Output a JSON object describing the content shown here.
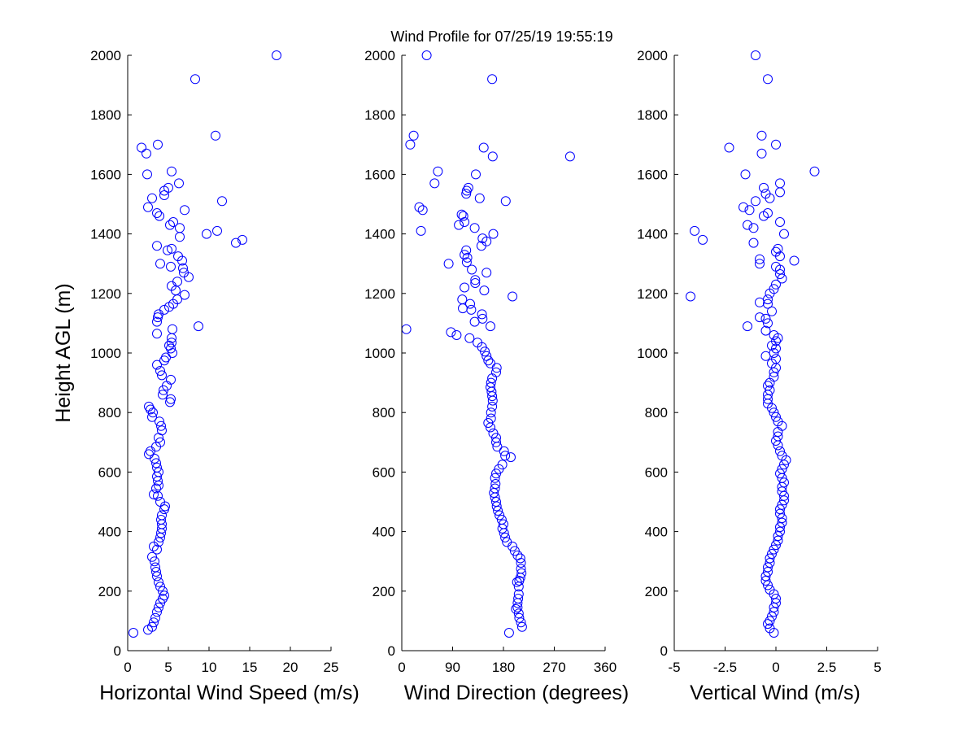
{
  "figure": {
    "title": "Wind Profile for  07/25/19 19:55:19",
    "ylabel": "Height AGL (m)"
  },
  "colors": {
    "marker": "#0000ff",
    "axes": "#000000",
    "background": "#ffffff"
  },
  "chart_data": [
    {
      "type": "scatter",
      "xlabel": "Horizontal Wind Speed (m/s)",
      "ylabel": "Height AGL (m)",
      "xlim": [
        0,
        25
      ],
      "ylim": [
        0,
        2000
      ],
      "xticks": [
        "0",
        "5",
        "10",
        "15",
        "20",
        "25"
      ],
      "yticks": [
        "0",
        "200",
        "400",
        "600",
        "800",
        "1000",
        "1200",
        "1400",
        "1600",
        "1800",
        "2000"
      ],
      "grid": false,
      "marker": "open-circle",
      "points": [
        [
          0.7,
          60
        ],
        [
          2.5,
          70
        ],
        [
          3.0,
          80
        ],
        [
          3.2,
          95
        ],
        [
          3.4,
          110
        ],
        [
          3.6,
          130
        ],
        [
          3.8,
          145
        ],
        [
          4.0,
          160
        ],
        [
          4.3,
          175
        ],
        [
          4.5,
          185
        ],
        [
          4.3,
          200
        ],
        [
          4.0,
          215
        ],
        [
          3.8,
          230
        ],
        [
          3.6,
          250
        ],
        [
          3.5,
          265
        ],
        [
          3.4,
          280
        ],
        [
          3.3,
          300
        ],
        [
          3.0,
          315
        ],
        [
          3.6,
          340
        ],
        [
          3.2,
          350
        ],
        [
          3.8,
          365
        ],
        [
          4.0,
          380
        ],
        [
          4.1,
          395
        ],
        [
          4.2,
          410
        ],
        [
          4.2,
          425
        ],
        [
          4.1,
          440
        ],
        [
          4.2,
          455
        ],
        [
          4.5,
          475
        ],
        [
          4.6,
          485
        ],
        [
          4.0,
          500
        ],
        [
          3.7,
          520
        ],
        [
          3.2,
          525
        ],
        [
          3.5,
          545
        ],
        [
          3.8,
          555
        ],
        [
          3.7,
          570
        ],
        [
          3.6,
          585
        ],
        [
          3.8,
          600
        ],
        [
          3.6,
          615
        ],
        [
          3.5,
          630
        ],
        [
          3.3,
          645
        ],
        [
          2.6,
          660
        ],
        [
          2.8,
          670
        ],
        [
          3.5,
          685
        ],
        [
          4.0,
          700
        ],
        [
          3.8,
          715
        ],
        [
          4.2,
          740
        ],
        [
          4.1,
          755
        ],
        [
          3.9,
          770
        ],
        [
          3.0,
          785
        ],
        [
          3.1,
          800
        ],
        [
          2.8,
          810
        ],
        [
          2.6,
          820
        ],
        [
          5.2,
          835
        ],
        [
          5.3,
          845
        ],
        [
          4.3,
          860
        ],
        [
          4.4,
          875
        ],
        [
          4.8,
          890
        ],
        [
          5.3,
          910
        ],
        [
          4.2,
          925
        ],
        [
          4.0,
          940
        ],
        [
          3.6,
          960
        ],
        [
          4.5,
          975
        ],
        [
          4.7,
          985
        ],
        [
          5.5,
          1000
        ],
        [
          5.3,
          1015
        ],
        [
          5.1,
          1025
        ],
        [
          5.4,
          1035
        ],
        [
          5.4,
          1050
        ],
        [
          3.6,
          1065
        ],
        [
          5.5,
          1080
        ],
        [
          8.7,
          1090
        ],
        [
          3.6,
          1105
        ],
        [
          3.7,
          1120
        ],
        [
          3.8,
          1130
        ],
        [
          4.5,
          1145
        ],
        [
          5.1,
          1155
        ],
        [
          5.6,
          1165
        ],
        [
          6.1,
          1180
        ],
        [
          7.0,
          1195
        ],
        [
          5.9,
          1210
        ],
        [
          5.4,
          1225
        ],
        [
          6.1,
          1240
        ],
        [
          7.5,
          1255
        ],
        [
          6.9,
          1270
        ],
        [
          6.8,
          1285
        ],
        [
          5.3,
          1290
        ],
        [
          4.0,
          1300
        ],
        [
          6.7,
          1310
        ],
        [
          6.2,
          1325
        ],
        [
          4.9,
          1345
        ],
        [
          5.4,
          1350
        ],
        [
          3.6,
          1360
        ],
        [
          13.3,
          1370
        ],
        [
          14.1,
          1380
        ],
        [
          6.4,
          1390
        ],
        [
          9.7,
          1400
        ],
        [
          11.0,
          1410
        ],
        [
          6.4,
          1420
        ],
        [
          5.2,
          1430
        ],
        [
          5.6,
          1440
        ],
        [
          3.9,
          1460
        ],
        [
          3.6,
          1470
        ],
        [
          7.0,
          1480
        ],
        [
          2.5,
          1490
        ],
        [
          11.6,
          1510
        ],
        [
          3.0,
          1520
        ],
        [
          4.5,
          1530
        ],
        [
          4.5,
          1545
        ],
        [
          5.0,
          1555
        ],
        [
          6.3,
          1570
        ],
        [
          2.4,
          1600
        ],
        [
          5.4,
          1610
        ],
        [
          2.3,
          1670
        ],
        [
          1.7,
          1690
        ],
        [
          3.7,
          1700
        ],
        [
          10.8,
          1730
        ],
        [
          8.3,
          1920
        ],
        [
          18.3,
          2000
        ]
      ]
    },
    {
      "type": "scatter",
      "xlabel": "Wind Direction (degrees)",
      "ylabel": "Height AGL (m)",
      "xlim": [
        0,
        360
      ],
      "ylim": [
        0,
        2000
      ],
      "xticks": [
        "0",
        "90",
        "180",
        "270",
        "360"
      ],
      "yticks": [
        "0",
        "200",
        "400",
        "600",
        "800",
        "1000",
        "1200",
        "1400",
        "1600",
        "1800",
        "2000"
      ],
      "grid": false,
      "marker": "open-circle",
      "points": [
        [
          190,
          60
        ],
        [
          213,
          80
        ],
        [
          211,
          95
        ],
        [
          208,
          110
        ],
        [
          207,
          125
        ],
        [
          205,
          145
        ],
        [
          202,
          140
        ],
        [
          205,
          160
        ],
        [
          206,
          175
        ],
        [
          207,
          190
        ],
        [
          207,
          215
        ],
        [
          208,
          235
        ],
        [
          204,
          230
        ],
        [
          210,
          245
        ],
        [
          212,
          260
        ],
        [
          211,
          275
        ],
        [
          211,
          295
        ],
        [
          210,
          310
        ],
        [
          205,
          320
        ],
        [
          200,
          335
        ],
        [
          196,
          350
        ],
        [
          186,
          365
        ],
        [
          183,
          380
        ],
        [
          181,
          395
        ],
        [
          178,
          410
        ],
        [
          180,
          425
        ],
        [
          177,
          440
        ],
        [
          173,
          455
        ],
        [
          170,
          470
        ],
        [
          168,
          485
        ],
        [
          167,
          500
        ],
        [
          165,
          515
        ],
        [
          163,
          530
        ],
        [
          165,
          545
        ],
        [
          166,
          560
        ],
        [
          165,
          580
        ],
        [
          167,
          595
        ],
        [
          172,
          610
        ],
        [
          178,
          625
        ],
        [
          193,
          650
        ],
        [
          183,
          655
        ],
        [
          181,
          670
        ],
        [
          169,
          685
        ],
        [
          167,
          700
        ],
        [
          167,
          715
        ],
        [
          162,
          730
        ],
        [
          157,
          750
        ],
        [
          153,
          765
        ],
        [
          158,
          780
        ],
        [
          158,
          800
        ],
        [
          160,
          820
        ],
        [
          161,
          840
        ],
        [
          160,
          855
        ],
        [
          159,
          870
        ],
        [
          157,
          885
        ],
        [
          158,
          900
        ],
        [
          160,
          915
        ],
        [
          167,
          935
        ],
        [
          168,
          950
        ],
        [
          157,
          965
        ],
        [
          153,
          975
        ],
        [
          150,
          990
        ],
        [
          147,
          1005
        ],
        [
          142,
          1020
        ],
        [
          134,
          1035
        ],
        [
          120,
          1050
        ],
        [
          97,
          1060
        ],
        [
          87,
          1070
        ],
        [
          8,
          1080
        ],
        [
          157,
          1090
        ],
        [
          129,
          1105
        ],
        [
          143,
          1115
        ],
        [
          142,
          1130
        ],
        [
          123,
          1145
        ],
        [
          108,
          1150
        ],
        [
          121,
          1165
        ],
        [
          107,
          1180
        ],
        [
          196,
          1190
        ],
        [
          146,
          1210
        ],
        [
          111,
          1220
        ],
        [
          130,
          1235
        ],
        [
          130,
          1245
        ],
        [
          150,
          1270
        ],
        [
          124,
          1280
        ],
        [
          115,
          1305
        ],
        [
          83,
          1300
        ],
        [
          116,
          1320
        ],
        [
          111,
          1330
        ],
        [
          114,
          1345
        ],
        [
          141,
          1360
        ],
        [
          150,
          1375
        ],
        [
          143,
          1385
        ],
        [
          162,
          1400
        ],
        [
          34,
          1410
        ],
        [
          129,
          1420
        ],
        [
          101,
          1430
        ],
        [
          111,
          1440
        ],
        [
          109,
          1460
        ],
        [
          106,
          1465
        ],
        [
          37,
          1480
        ],
        [
          31,
          1490
        ],
        [
          184,
          1510
        ],
        [
          138,
          1520
        ],
        [
          114,
          1535
        ],
        [
          115,
          1545
        ],
        [
          118,
          1555
        ],
        [
          58,
          1570
        ],
        [
          131,
          1600
        ],
        [
          64,
          1610
        ],
        [
          161,
          1660
        ],
        [
          298,
          1660
        ],
        [
          145,
          1690
        ],
        [
          15,
          1700
        ],
        [
          21,
          1730
        ],
        [
          160,
          1920
        ],
        [
          44,
          2000
        ]
      ]
    },
    {
      "type": "scatter",
      "xlabel": "Vertical Wind (m/s)",
      "ylabel": "Height AGL (m)",
      "xlim": [
        -5,
        5
      ],
      "ylim": [
        0,
        2000
      ],
      "xticks": [
        "-5",
        "-2.5",
        "0",
        "2.5",
        "5"
      ],
      "yticks": [
        "0",
        "200",
        "400",
        "600",
        "800",
        "1000",
        "1200",
        "1400",
        "1600",
        "1800",
        "2000"
      ],
      "grid": false,
      "marker": "open-circle",
      "points": [
        [
          -0.1,
          60
        ],
        [
          -0.3,
          75
        ],
        [
          -0.4,
          90
        ],
        [
          -0.3,
          100
        ],
        [
          -0.2,
          115
        ],
        [
          -0.1,
          130
        ],
        [
          -0.1,
          145
        ],
        [
          0.0,
          160
        ],
        [
          0.0,
          175
        ],
        [
          -0.1,
          190
        ],
        [
          -0.3,
          205
        ],
        [
          -0.4,
          220
        ],
        [
          -0.5,
          235
        ],
        [
          -0.5,
          250
        ],
        [
          -0.4,
          265
        ],
        [
          -0.4,
          280
        ],
        [
          -0.3,
          295
        ],
        [
          -0.3,
          310
        ],
        [
          -0.2,
          325
        ],
        [
          -0.1,
          340
        ],
        [
          0.0,
          355
        ],
        [
          0.1,
          370
        ],
        [
          0.1,
          385
        ],
        [
          0.2,
          400
        ],
        [
          0.2,
          415
        ],
        [
          0.3,
          430
        ],
        [
          0.3,
          445
        ],
        [
          0.2,
          460
        ],
        [
          0.2,
          475
        ],
        [
          0.3,
          490
        ],
        [
          0.4,
          505
        ],
        [
          0.4,
          520
        ],
        [
          0.3,
          535
        ],
        [
          0.3,
          550
        ],
        [
          0.4,
          565
        ],
        [
          0.3,
          580
        ],
        [
          0.2,
          595
        ],
        [
          0.3,
          610
        ],
        [
          0.4,
          625
        ],
        [
          0.5,
          640
        ],
        [
          0.3,
          655
        ],
        [
          0.2,
          670
        ],
        [
          0.1,
          690
        ],
        [
          0.0,
          705
        ],
        [
          0.1,
          720
        ],
        [
          0.1,
          735
        ],
        [
          0.3,
          755
        ],
        [
          0.1,
          770
        ],
        [
          0.0,
          785
        ],
        [
          -0.1,
          800
        ],
        [
          -0.2,
          815
        ],
        [
          -0.4,
          830
        ],
        [
          -0.4,
          845
        ],
        [
          -0.4,
          860
        ],
        [
          -0.3,
          875
        ],
        [
          -0.4,
          890
        ],
        [
          -0.3,
          900
        ],
        [
          -0.1,
          920
        ],
        [
          -0.1,
          935
        ],
        [
          0.0,
          950
        ],
        [
          -0.2,
          965
        ],
        [
          0.0,
          980
        ],
        [
          -0.5,
          990
        ],
        [
          -0.1,
          1000
        ],
        [
          0.0,
          1015
        ],
        [
          -0.2,
          1025
        ],
        [
          0.0,
          1040
        ],
        [
          0.1,
          1050
        ],
        [
          -0.1,
          1060
        ],
        [
          -0.5,
          1075
        ],
        [
          -1.4,
          1090
        ],
        [
          -0.4,
          1100
        ],
        [
          -0.5,
          1115
        ],
        [
          -0.8,
          1120
        ],
        [
          -0.2,
          1140
        ],
        [
          -0.4,
          1165
        ],
        [
          -0.8,
          1170
        ],
        [
          -0.4,
          1180
        ],
        [
          -4.2,
          1190
        ],
        [
          -0.3,
          1200
        ],
        [
          -0.1,
          1215
        ],
        [
          0.0,
          1230
        ],
        [
          0.3,
          1250
        ],
        [
          0.2,
          1265
        ],
        [
          0.2,
          1280
        ],
        [
          0.0,
          1290
        ],
        [
          -0.8,
          1300
        ],
        [
          -0.8,
          1315
        ],
        [
          0.9,
          1310
        ],
        [
          0.2,
          1325
        ],
        [
          0.0,
          1340
        ],
        [
          0.1,
          1350
        ],
        [
          -1.1,
          1370
        ],
        [
          -3.6,
          1380
        ],
        [
          0.4,
          1400
        ],
        [
          -4.0,
          1410
        ],
        [
          -1.1,
          1420
        ],
        [
          -1.4,
          1430
        ],
        [
          0.2,
          1440
        ],
        [
          -0.6,
          1460
        ],
        [
          -0.4,
          1470
        ],
        [
          -1.3,
          1480
        ],
        [
          -1.6,
          1490
        ],
        [
          -1.0,
          1510
        ],
        [
          -0.3,
          1520
        ],
        [
          -0.5,
          1535
        ],
        [
          0.2,
          1540
        ],
        [
          -0.6,
          1555
        ],
        [
          0.2,
          1570
        ],
        [
          -1.5,
          1600
        ],
        [
          1.9,
          1610
        ],
        [
          -0.7,
          1670
        ],
        [
          -2.3,
          1690
        ],
        [
          0.0,
          1700
        ],
        [
          -0.7,
          1730
        ],
        [
          -0.4,
          1920
        ],
        [
          -1.0,
          2000
        ]
      ]
    }
  ]
}
